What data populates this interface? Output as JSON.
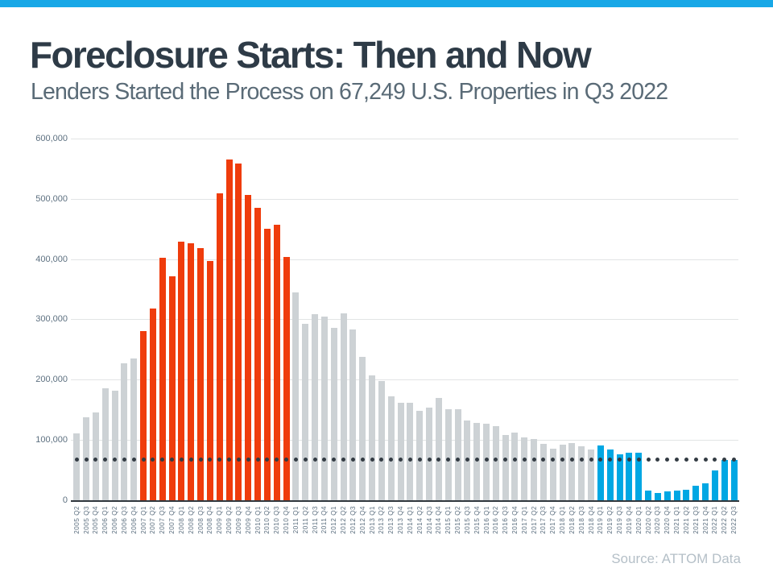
{
  "header": {
    "title": "Foreclosure Starts: Then and Now",
    "subtitle": "Lenders Started the Process on 67,249 U.S. Properties in Q3 2022"
  },
  "source_note": "Source: ATTOM Data",
  "colors": {
    "top_strip": "#18a8e7",
    "title_text": "#2e3b47",
    "subtitle_text": "#5a6b77",
    "axis_label_text": "#5d7080",
    "gridline": "#e2e4e5",
    "axis_line": "#30373d",
    "bar_gray": "#cdd2d5",
    "bar_red": "#ef3c0c",
    "bar_blue": "#00a7e3",
    "reference_dots": "#333b43",
    "source_text": "#b4bfc7"
  },
  "chart_data": {
    "type": "bar",
    "title": "Foreclosure Starts: Then and Now",
    "subtitle": "Lenders Started the Process on 67,249 U.S. Properties in Q3 2022",
    "xlabel": "",
    "ylabel": "",
    "ylim": [
      0,
      600000
    ],
    "ytick_labels": [
      "0",
      "100,000",
      "200,000",
      "300,000",
      "400,000",
      "500,000",
      "600,000"
    ],
    "ytick_values": [
      0,
      100000,
      200000,
      300000,
      400000,
      500000,
      600000
    ],
    "grid": "horizontal",
    "legend": "none",
    "reference_line": {
      "value": 67249,
      "style": "dotted",
      "label": "Q3 2022 level"
    },
    "color_eras": [
      {
        "from_index": 0,
        "to_index": 6,
        "color_key": "bar_gray"
      },
      {
        "from_index": 7,
        "to_index": 22,
        "color_key": "bar_red"
      },
      {
        "from_index": 23,
        "to_index": 54,
        "color_key": "bar_gray"
      },
      {
        "from_index": 55,
        "to_index": 69,
        "color_key": "bar_blue"
      }
    ],
    "categories": [
      "2005 Q2",
      "2005 Q3",
      "2005 Q4",
      "2006 Q1",
      "2006 Q2",
      "2006 Q3",
      "2006 Q4",
      "2007 Q1",
      "2007 Q2",
      "2007 Q3",
      "2007 Q4",
      "2008 Q1",
      "2008 Q2",
      "2008 Q3",
      "2008 Q4",
      "2009 Q1",
      "2009 Q2",
      "2009 Q3",
      "2009 Q4",
      "2010 Q1",
      "2010 Q2",
      "2010 Q3",
      "2010 Q4",
      "2011 Q1",
      "2011 Q2",
      "2011 Q3",
      "2011 Q4",
      "2012 Q1",
      "2012 Q2",
      "2012 Q3",
      "2012 Q4",
      "2013 Q1",
      "2013 Q2",
      "2013 Q3",
      "2013 Q4",
      "2014 Q1",
      "2014 Q2",
      "2014 Q3",
      "2014 Q4",
      "2015 Q1",
      "2015 Q2",
      "2015 Q3",
      "2015 Q4",
      "2016 Q1",
      "2016 Q2",
      "2016 Q3",
      "2016 Q4",
      "2017 Q1",
      "2017 Q2",
      "2017 Q3",
      "2017 Q4",
      "2018 Q1",
      "2018 Q2",
      "2018 Q3",
      "2018 Q4",
      "2019 Q1",
      "2019 Q2",
      "2019 Q3",
      "2019 Q4",
      "2020 Q1",
      "2020 Q2",
      "2020 Q3",
      "2020 Q4",
      "2021 Q1",
      "2021 Q2",
      "2021 Q3",
      "2021 Q4",
      "2022 Q1",
      "2022 Q2",
      "2022 Q3"
    ],
    "values": [
      111500,
      138000,
      145500,
      186500,
      181500,
      227000,
      235000,
      281000,
      318000,
      402500,
      372000,
      429000,
      427000,
      418500,
      397500,
      510000,
      566000,
      559000,
      506500,
      486000,
      451000,
      457000,
      404500,
      345000,
      292500,
      309500,
      305000,
      286000,
      310500,
      283000,
      237500,
      208000,
      198000,
      172000,
      162500,
      162500,
      148500,
      153500,
      170000,
      151500,
      151500,
      132500,
      128500,
      127000,
      122500,
      109000,
      112500,
      105000,
      102000,
      93000,
      85000,
      92500,
      95500,
      90000,
      84000,
      90500,
      84000,
      76000,
      79000,
      79500,
      15500,
      12500,
      15000,
      15500,
      17000,
      23500,
      28500,
      50000,
      66500,
      67249
    ]
  }
}
